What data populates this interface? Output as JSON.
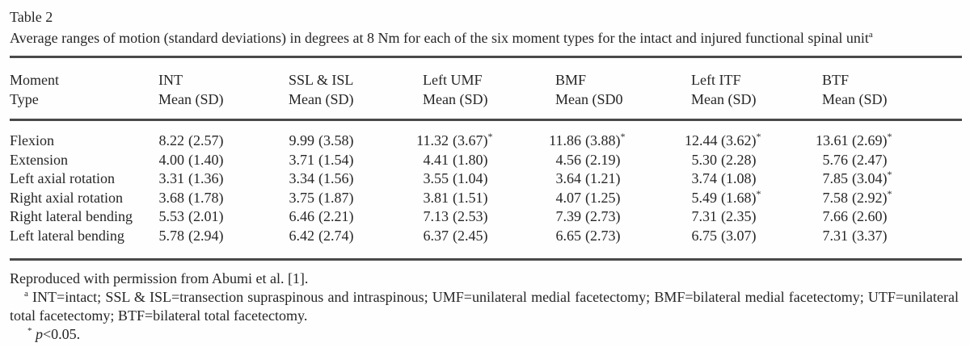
{
  "table": {
    "label": "Table 2",
    "caption": "Average ranges of motion (standard deviations) in degrees at 8 Nm for each of the six moment types for the intact and injured functional spinal unit",
    "caption_note_marker": "a",
    "columns": [
      {
        "line1": "Moment",
        "line2": "Type"
      },
      {
        "line1": "INT",
        "line2": "Mean (SD)"
      },
      {
        "line1": "SSL & ISL",
        "line2": "Mean (SD)"
      },
      {
        "line1": "Left UMF",
        "line2": "Mean (SD)"
      },
      {
        "line1": "BMF",
        "line2": "Mean (SD0"
      },
      {
        "line1": "Left ITF",
        "line2": "Mean (SD)"
      },
      {
        "line1": "BTF",
        "line2": "Mean (SD)"
      }
    ],
    "rows": [
      {
        "label": "Flexion",
        "cells": [
          {
            "mean": "8.22",
            "sd": "(2.57)",
            "star": ""
          },
          {
            "mean": "9.99",
            "sd": "(3.58)",
            "star": ""
          },
          {
            "mean": "11.32",
            "sd": "(3.67)",
            "star": "*"
          },
          {
            "mean": "11.86",
            "sd": "(3.88)",
            "star": "*"
          },
          {
            "mean": "12.44",
            "sd": "(3.62)",
            "star": "*"
          },
          {
            "mean": "13.61",
            "sd": "(2.69)",
            "star": "*"
          }
        ]
      },
      {
        "label": "Extension",
        "cells": [
          {
            "mean": "4.00",
            "sd": "(1.40)",
            "star": ""
          },
          {
            "mean": "3.71",
            "sd": "(1.54)",
            "star": ""
          },
          {
            "mean": "4.41",
            "sd": "(1.80)",
            "star": ""
          },
          {
            "mean": "4.56",
            "sd": "(2.19)",
            "star": ""
          },
          {
            "mean": "5.30",
            "sd": "(2.28)",
            "star": ""
          },
          {
            "mean": "5.76",
            "sd": "(2.47)",
            "star": ""
          }
        ]
      },
      {
        "label": "Left axial rotation",
        "cells": [
          {
            "mean": "3.31",
            "sd": "(1.36)",
            "star": ""
          },
          {
            "mean": "3.34",
            "sd": "(1.56)",
            "star": ""
          },
          {
            "mean": "3.55",
            "sd": "(1.04)",
            "star": ""
          },
          {
            "mean": "3.64",
            "sd": "(1.21)",
            "star": ""
          },
          {
            "mean": "3.74",
            "sd": "(1.08)",
            "star": ""
          },
          {
            "mean": "7.85",
            "sd": "(3.04)",
            "star": "*"
          }
        ]
      },
      {
        "label": "Right axial rotation",
        "cells": [
          {
            "mean": "3.68",
            "sd": "(1.78)",
            "star": ""
          },
          {
            "mean": "3.75",
            "sd": "(1.87)",
            "star": ""
          },
          {
            "mean": "3.81",
            "sd": "(1.51)",
            "star": ""
          },
          {
            "mean": "4.07",
            "sd": "(1.25)",
            "star": ""
          },
          {
            "mean": "5.49",
            "sd": "(1.68)",
            "star": "*"
          },
          {
            "mean": "7.58",
            "sd": "(2.92)",
            "star": "*"
          }
        ]
      },
      {
        "label": "Right lateral bending",
        "cells": [
          {
            "mean": "5.53",
            "sd": "(2.01)",
            "star": ""
          },
          {
            "mean": "6.46",
            "sd": "(2.21)",
            "star": ""
          },
          {
            "mean": "7.13",
            "sd": "(2.53)",
            "star": ""
          },
          {
            "mean": "7.39",
            "sd": "(2.73)",
            "star": ""
          },
          {
            "mean": "7.31",
            "sd": "(2.35)",
            "star": ""
          },
          {
            "mean": "7.66",
            "sd": "(2.60)",
            "star": ""
          }
        ]
      },
      {
        "label": "Left lateral bending",
        "cells": [
          {
            "mean": "5.78",
            "sd": "(2.94)",
            "star": ""
          },
          {
            "mean": "6.42",
            "sd": "(2.74)",
            "star": ""
          },
          {
            "mean": "6.37",
            "sd": "(2.45)",
            "star": ""
          },
          {
            "mean": "6.65",
            "sd": "(2.73)",
            "star": ""
          },
          {
            "mean": "6.75",
            "sd": "(3.07)",
            "star": ""
          },
          {
            "mean": "7.31",
            "sd": "(3.37)",
            "star": ""
          }
        ]
      }
    ]
  },
  "footnotes": {
    "source": "Reproduced with permission from Abumi et al. [1].",
    "note_a_marker": "a",
    "note_a_text": " INT=intact; SSL & ISL=transection supraspinous and intraspinous; UMF=unilateral medial facetectomy; BMF=bilateral medial facetectomy; UTF=unilateral total facetectomy; BTF=bilateral total facetectomy.",
    "sig_marker": "*",
    "sig_p": "p",
    "sig_text": "<0.05."
  }
}
